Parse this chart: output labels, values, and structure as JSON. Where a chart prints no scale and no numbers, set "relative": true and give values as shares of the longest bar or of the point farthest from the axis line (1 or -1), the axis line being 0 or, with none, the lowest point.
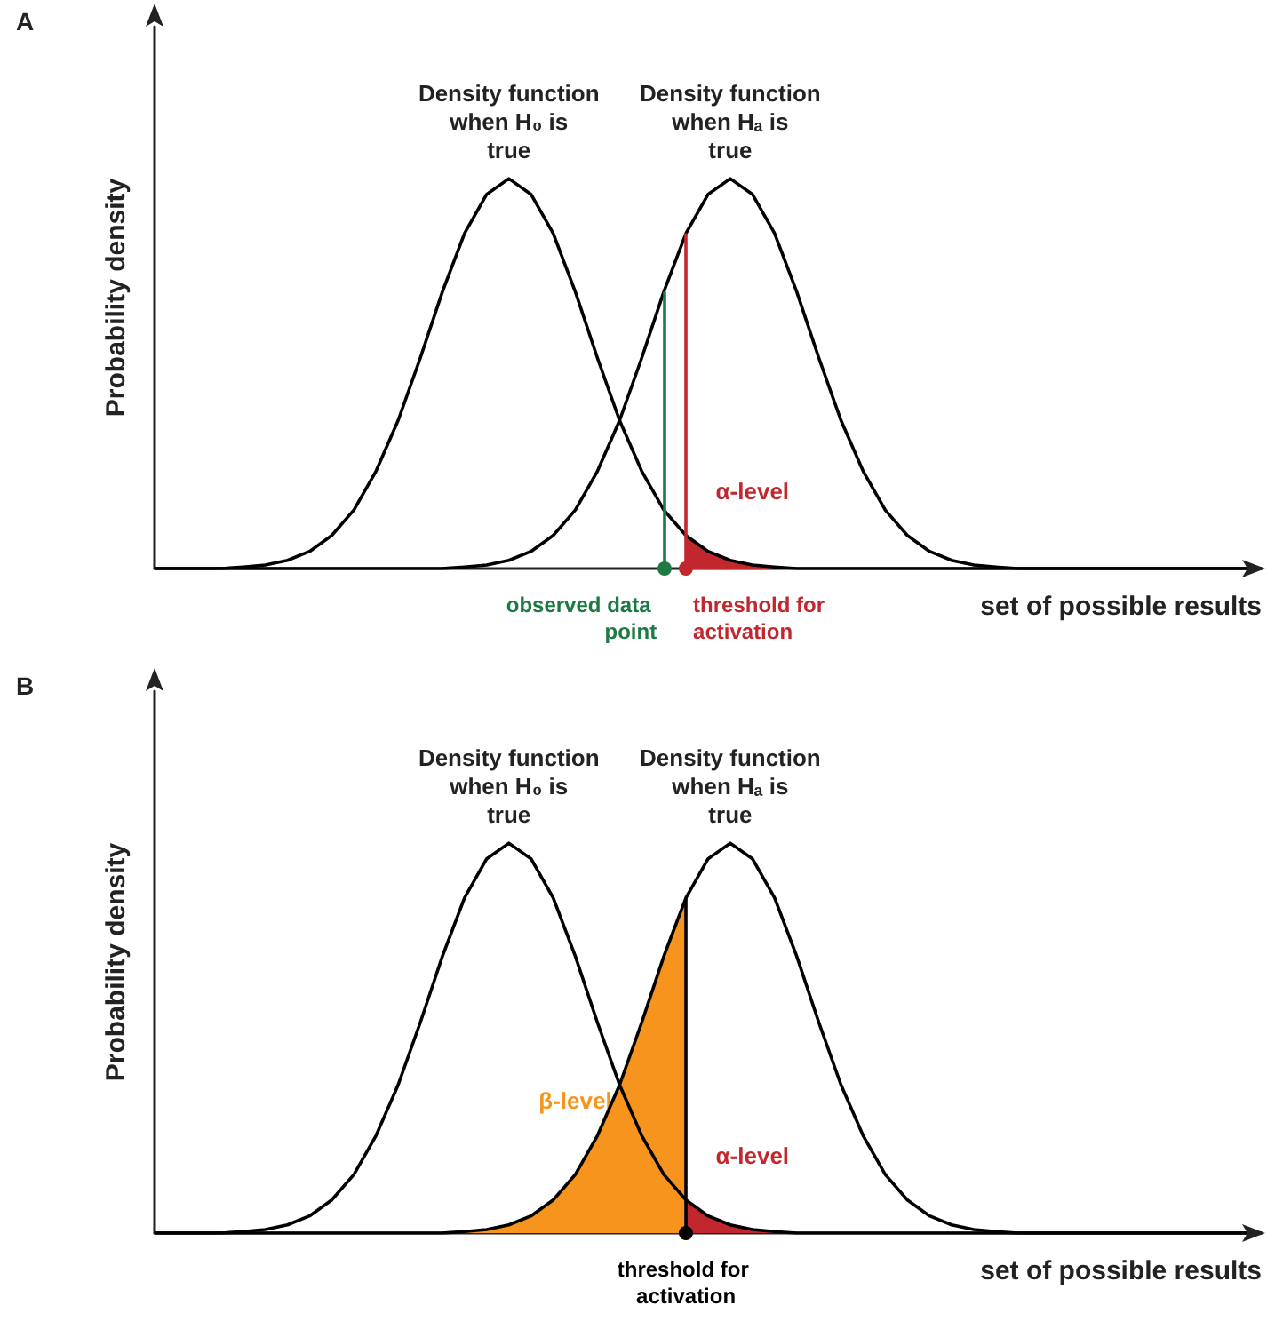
{
  "chart_data": [
    {
      "type": "line",
      "title": "A",
      "xlabel": "set of possible results",
      "ylabel": "Probability density",
      "relative": true,
      "grid": false,
      "legend": false,
      "marker": "none",
      "categories": [
        null,
        null,
        null,
        null,
        null,
        null,
        null,
        null,
        null,
        null,
        null,
        null,
        null,
        null,
        null,
        null,
        null,
        null,
        null,
        null,
        null,
        null,
        null,
        null,
        null,
        null,
        null,
        null,
        null,
        null,
        null,
        null,
        null,
        null,
        null,
        null,
        null,
        null,
        null,
        null,
        null,
        null,
        null,
        null,
        null,
        null,
        null,
        null,
        null,
        null,
        null
      ],
      "series": [
        {
          "name": "Density function when H₀ is true",
          "color": "#000000",
          "values": [
            0,
            0,
            0,
            0,
            0.004,
            0.009,
            0.021,
            0.044,
            0.085,
            0.15,
            0.25,
            0.38,
            0.54,
            0.71,
            0.86,
            0.96,
            1,
            0.96,
            0.86,
            0.71,
            0.54,
            0.38,
            0.25,
            0.15,
            0.085,
            0.044,
            0.021,
            0.009,
            0.004,
            0,
            0,
            0,
            0,
            0,
            0,
            0,
            0,
            0,
            0,
            0,
            0,
            0,
            0,
            0,
            0,
            0,
            0,
            0,
            0,
            0,
            0
          ]
        },
        {
          "name": "Density function when Hₐ is true",
          "color": "#000000",
          "values": [
            0,
            0,
            0,
            0,
            0,
            0,
            0,
            0,
            0,
            0,
            0,
            0,
            0,
            0,
            0.004,
            0.009,
            0.021,
            0.044,
            0.085,
            0.15,
            0.25,
            0.38,
            0.54,
            0.71,
            0.86,
            0.96,
            1,
            0.96,
            0.86,
            0.71,
            0.54,
            0.38,
            0.25,
            0.15,
            0.085,
            0.044,
            0.021,
            0.009,
            0.004,
            0,
            0,
            0,
            0,
            0,
            0,
            0,
            0,
            0,
            0,
            0,
            0
          ]
        },
        {
          "name": "α-level",
          "type": "area",
          "color": "#c1272d",
          "values": [
            null,
            null,
            null,
            null,
            null,
            null,
            null,
            null,
            null,
            null,
            null,
            null,
            null,
            null,
            null,
            null,
            null,
            null,
            null,
            null,
            null,
            null,
            null,
            null,
            0.085,
            0.044,
            0.021,
            0.009,
            0.004,
            0,
            null,
            null,
            null,
            null,
            null,
            null,
            null,
            null,
            null,
            null,
            null,
            null,
            null,
            null,
            null,
            null,
            null,
            null,
            null,
            null,
            null
          ]
        }
      ],
      "annotations": [
        "observed data point",
        "threshold for activation"
      ]
    },
    {
      "type": "line",
      "title": "B",
      "xlabel": "set of possible results",
      "ylabel": "Probability density",
      "relative": true,
      "grid": false,
      "legend": false,
      "marker": "none",
      "categories": [
        null,
        null,
        null,
        null,
        null,
        null,
        null,
        null,
        null,
        null,
        null,
        null,
        null,
        null,
        null,
        null,
        null,
        null,
        null,
        null,
        null,
        null,
        null,
        null,
        null,
        null,
        null,
        null,
        null,
        null,
        null,
        null,
        null,
        null,
        null,
        null,
        null,
        null,
        null,
        null,
        null,
        null,
        null,
        null,
        null,
        null,
        null,
        null,
        null,
        null,
        null
      ],
      "series": [
        {
          "name": "Density function when H₀ is true",
          "color": "#000000",
          "values": [
            0,
            0,
            0,
            0,
            0.004,
            0.009,
            0.021,
            0.044,
            0.085,
            0.15,
            0.25,
            0.38,
            0.54,
            0.71,
            0.86,
            0.96,
            1,
            0.96,
            0.86,
            0.71,
            0.54,
            0.38,
            0.25,
            0.15,
            0.085,
            0.044,
            0.021,
            0.009,
            0.004,
            0,
            0,
            0,
            0,
            0,
            0,
            0,
            0,
            0,
            0,
            0,
            0,
            0,
            0,
            0,
            0,
            0,
            0,
            0,
            0,
            0,
            0
          ]
        },
        {
          "name": "Density function when Hₐ is true",
          "color": "#000000",
          "values": [
            0,
            0,
            0,
            0,
            0,
            0,
            0,
            0,
            0,
            0,
            0,
            0,
            0,
            0,
            0.004,
            0.009,
            0.021,
            0.044,
            0.085,
            0.15,
            0.25,
            0.38,
            0.54,
            0.71,
            0.86,
            0.96,
            1,
            0.96,
            0.86,
            0.71,
            0.54,
            0.38,
            0.25,
            0.15,
            0.085,
            0.044,
            0.021,
            0.009,
            0.004,
            0,
            0,
            0,
            0,
            0,
            0,
            0,
            0,
            0,
            0,
            0,
            0
          ]
        },
        {
          "name": "β-level",
          "type": "area",
          "color": "#f7941d",
          "values": [
            null,
            null,
            null,
            null,
            null,
            null,
            null,
            null,
            null,
            null,
            null,
            null,
            null,
            null,
            0.004,
            0.009,
            0.021,
            0.044,
            0.085,
            0.15,
            0.25,
            0.38,
            0.54,
            0.71,
            0.86,
            null,
            null,
            null,
            null,
            null,
            null,
            null,
            null,
            null,
            null,
            null,
            null,
            null,
            null,
            null,
            null,
            null,
            null,
            null,
            null,
            null,
            null,
            null,
            null,
            null,
            null
          ]
        },
        {
          "name": "α-level",
          "type": "area",
          "color": "#c1272d",
          "values": [
            null,
            null,
            null,
            null,
            null,
            null,
            null,
            null,
            null,
            null,
            null,
            null,
            null,
            null,
            null,
            null,
            null,
            null,
            null,
            null,
            null,
            null,
            null,
            null,
            0.085,
            0.044,
            0.021,
            0.009,
            0.004,
            0,
            null,
            null,
            null,
            null,
            null,
            null,
            null,
            null,
            null,
            null,
            null,
            null,
            null,
            null,
            null,
            null,
            null,
            null,
            null,
            null,
            null
          ]
        }
      ],
      "annotations": [
        "threshold for activation"
      ]
    }
  ]
}
